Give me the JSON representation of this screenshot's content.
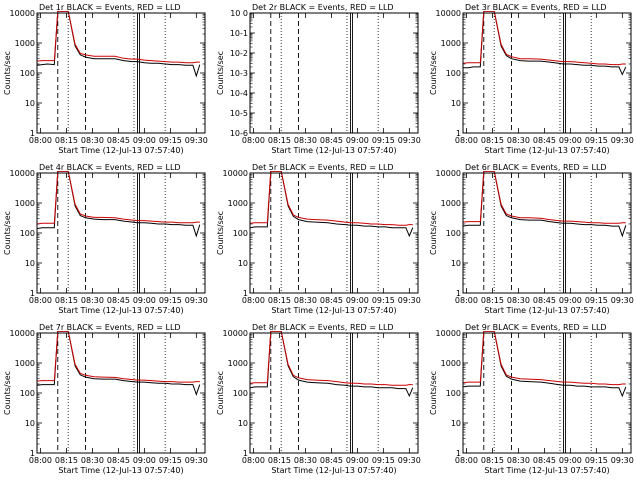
{
  "colors": {
    "events": "#000000",
    "lld": "#cc0000",
    "background": "#ffffff"
  },
  "chart_data": [
    {
      "type": "line",
      "title": "Det 1r BLACK = Events, RED = LLD",
      "xlabel": "Start Time (12-Jul-13 07:57:40)",
      "ylabel": "Counts/sec",
      "y_scale": "log",
      "ylim": [
        1,
        10000
      ],
      "x_ticks": [
        "08:00",
        "08:15",
        "08:30",
        "08:45",
        "09:00",
        "09:15",
        "09:30"
      ],
      "y_ticks": [
        "1",
        "10",
        "100",
        "1000",
        "10000"
      ],
      "x": [
        0,
        3,
        6,
        10,
        12,
        14,
        16,
        18,
        22,
        25,
        28,
        33,
        38,
        45,
        50,
        55,
        58,
        62,
        66,
        70,
        74,
        78,
        82,
        86,
        90,
        92,
        94
      ],
      "series": [
        {
          "name": "Events",
          "values": [
            180,
            190,
            200,
            190,
            12000,
            12000,
            12000,
            12000,
            800,
            400,
            340,
            300,
            300,
            300,
            260,
            240,
            240,
            220,
            210,
            210,
            200,
            190,
            190,
            180,
            180,
            80,
            190
          ]
        },
        {
          "name": "LLD",
          "values": [
            250,
            260,
            260,
            260,
            12000,
            12000,
            12000,
            12000,
            900,
            450,
            400,
            360,
            360,
            360,
            310,
            290,
            290,
            270,
            260,
            250,
            240,
            230,
            230,
            220,
            220,
            230,
            230
          ]
        }
      ],
      "markers": {
        "dashed": [
          12,
          28
        ],
        "dotted": [
          18,
          56,
          74
        ],
        "solid": [
          58
        ]
      }
    },
    {
      "type": "line",
      "title": "Det 2r BLACK = Events, RED = LLD",
      "xlabel": "Start Time (12-Jul-13 07:57:40)",
      "ylabel": "Counts/sec",
      "y_scale": "log",
      "ylim": [
        1e-06,
        1.0
      ],
      "x_ticks": [
        "08:00",
        "08:15",
        "08:30",
        "08:45",
        "09:00",
        "09:15",
        "09:30"
      ],
      "y_ticks": [
        "10-6",
        "10-5",
        "10-4",
        "10-3",
        "10-2",
        "10-1",
        "10 0"
      ],
      "x": [],
      "series": [],
      "markers": {
        "dashed": [
          12,
          28
        ],
        "dotted": [
          18,
          56,
          74
        ],
        "solid": [
          58
        ]
      }
    },
    {
      "type": "line",
      "title": "Det 3r BLACK = Events, RED = LLD",
      "xlabel": "Start Time (12-Jul-13 07:57:40)",
      "ylabel": "Counts/sec",
      "y_scale": "log",
      "ylim": [
        1,
        10000
      ],
      "x_ticks": [
        "08:00",
        "08:15",
        "08:30",
        "08:45",
        "09:00",
        "09:15",
        "09:30"
      ],
      "y_ticks": [
        "1",
        "10",
        "100",
        "1000",
        "10000"
      ],
      "x": [
        0,
        3,
        6,
        10,
        12,
        14,
        16,
        18,
        22,
        25,
        28,
        33,
        38,
        45,
        50,
        55,
        58,
        62,
        66,
        70,
        74,
        78,
        82,
        86,
        90,
        92,
        94
      ],
      "series": [
        {
          "name": "Events",
          "values": [
            150,
            150,
            160,
            160,
            12000,
            12000,
            12000,
            12000,
            800,
            380,
            300,
            260,
            250,
            250,
            230,
            210,
            200,
            200,
            190,
            180,
            180,
            170,
            170,
            160,
            160,
            90,
            160
          ]
        },
        {
          "name": "LLD",
          "values": [
            210,
            220,
            220,
            220,
            12000,
            12000,
            12000,
            12000,
            900,
            420,
            350,
            300,
            300,
            290,
            270,
            250,
            240,
            240,
            230,
            220,
            210,
            200,
            200,
            190,
            190,
            200,
            200
          ]
        }
      ],
      "markers": {
        "dashed": [
          12,
          28
        ],
        "dotted": [
          18,
          56,
          74
        ],
        "solid": [
          58
        ]
      }
    },
    {
      "type": "line",
      "title": "Det 4r BLACK = Events, RED = LLD",
      "xlabel": "Start Time (12-Jul-13 07:57:40)",
      "ylabel": "Counts/sec",
      "y_scale": "log",
      "ylim": [
        1,
        10000
      ],
      "x_ticks": [
        "08:00",
        "08:15",
        "08:30",
        "08:45",
        "09:00",
        "09:15",
        "09:30"
      ],
      "y_ticks": [
        "1",
        "10",
        "100",
        "1000",
        "10000"
      ],
      "x": [
        0,
        3,
        6,
        10,
        12,
        14,
        16,
        18,
        22,
        25,
        28,
        33,
        38,
        45,
        50,
        55,
        58,
        62,
        66,
        70,
        74,
        78,
        82,
        86,
        90,
        92,
        94
      ],
      "series": [
        {
          "name": "Events",
          "values": [
            140,
            150,
            150,
            150,
            12000,
            12000,
            12000,
            12000,
            800,
            380,
            320,
            290,
            280,
            280,
            250,
            230,
            220,
            220,
            210,
            200,
            200,
            190,
            190,
            180,
            180,
            80,
            190
          ]
        },
        {
          "name": "LLD",
          "values": [
            200,
            210,
            210,
            210,
            12000,
            12000,
            12000,
            12000,
            900,
            430,
            370,
            330,
            330,
            320,
            290,
            270,
            260,
            260,
            250,
            240,
            230,
            230,
            220,
            220,
            220,
            230,
            230
          ]
        }
      ],
      "markers": {
        "dashed": [
          12,
          28
        ],
        "dotted": [
          18,
          56,
          74
        ],
        "solid": [
          58
        ]
      }
    },
    {
      "type": "line",
      "title": "Det 5r BLACK = Events, RED = LLD",
      "xlabel": "Start Time (12-Jul-13 07:57:40)",
      "ylabel": "Counts/sec",
      "y_scale": "log",
      "ylim": [
        1,
        10000
      ],
      "x_ticks": [
        "08:00",
        "08:15",
        "08:30",
        "08:45",
        "09:00",
        "09:15",
        "09:30"
      ],
      "y_ticks": [
        "1",
        "10",
        "100",
        "1000",
        "10000"
      ],
      "x": [
        0,
        3,
        6,
        10,
        12,
        14,
        16,
        18,
        22,
        25,
        28,
        33,
        38,
        45,
        50,
        55,
        58,
        62,
        66,
        70,
        74,
        78,
        82,
        86,
        90,
        92,
        94
      ],
      "series": [
        {
          "name": "Events",
          "values": [
            150,
            160,
            160,
            160,
            12000,
            12000,
            12000,
            12000,
            800,
            360,
            280,
            240,
            230,
            220,
            200,
            190,
            180,
            180,
            170,
            170,
            160,
            160,
            150,
            150,
            150,
            80,
            150
          ]
        },
        {
          "name": "LLD",
          "values": [
            210,
            220,
            220,
            220,
            12000,
            12000,
            12000,
            12000,
            900,
            400,
            330,
            290,
            280,
            270,
            250,
            230,
            220,
            220,
            210,
            200,
            200,
            190,
            190,
            180,
            180,
            190,
            190
          ]
        }
      ],
      "markers": {
        "dashed": [
          12,
          28
        ],
        "dotted": [
          18,
          56,
          74
        ],
        "solid": [
          58
        ]
      }
    },
    {
      "type": "line",
      "title": "Det 6r BLACK = Events, RED = LLD",
      "xlabel": "Start Time (12-Jul-13 07:57:40)",
      "ylabel": "Counts/sec",
      "y_scale": "log",
      "ylim": [
        1,
        10000
      ],
      "x_ticks": [
        "08:00",
        "08:15",
        "08:30",
        "08:45",
        "09:00",
        "09:15",
        "09:30"
      ],
      "y_ticks": [
        "1",
        "10",
        "100",
        "1000",
        "10000"
      ],
      "x": [
        0,
        3,
        6,
        10,
        12,
        14,
        16,
        18,
        22,
        25,
        28,
        33,
        38,
        45,
        50,
        55,
        58,
        62,
        66,
        70,
        74,
        78,
        82,
        86,
        90,
        92,
        94
      ],
      "series": [
        {
          "name": "Events",
          "values": [
            170,
            180,
            180,
            180,
            12000,
            12000,
            12000,
            12000,
            800,
            380,
            320,
            280,
            270,
            270,
            240,
            220,
            210,
            210,
            200,
            190,
            190,
            180,
            180,
            170,
            170,
            80,
            180
          ]
        },
        {
          "name": "LLD",
          "values": [
            230,
            240,
            240,
            240,
            12000,
            12000,
            12000,
            12000,
            900,
            430,
            370,
            320,
            320,
            310,
            280,
            260,
            250,
            250,
            240,
            230,
            220,
            220,
            210,
            210,
            210,
            220,
            220
          ]
        }
      ],
      "markers": {
        "dashed": [
          12,
          28
        ],
        "dotted": [
          18,
          56,
          74
        ],
        "solid": [
          58
        ]
      }
    },
    {
      "type": "line",
      "title": "Det 7r BLACK = Events, RED = LLD",
      "xlabel": "Start Time (12-Jul-13 07:57:40)",
      "ylabel": "Counts/sec",
      "y_scale": "log",
      "ylim": [
        1,
        10000
      ],
      "x_ticks": [
        "08:00",
        "08:15",
        "08:30",
        "08:45",
        "09:00",
        "09:15",
        "09:30"
      ],
      "y_ticks": [
        "1",
        "10",
        "100",
        "1000",
        "10000"
      ],
      "x": [
        0,
        3,
        6,
        10,
        12,
        14,
        16,
        18,
        22,
        25,
        28,
        33,
        38,
        45,
        50,
        55,
        58,
        62,
        66,
        70,
        74,
        78,
        82,
        86,
        90,
        92,
        94
      ],
      "series": [
        {
          "name": "Events",
          "values": [
            180,
            190,
            190,
            190,
            12000,
            12000,
            12000,
            12000,
            800,
            400,
            340,
            300,
            290,
            290,
            260,
            240,
            230,
            230,
            220,
            210,
            210,
            200,
            200,
            190,
            190,
            90,
            190
          ]
        },
        {
          "name": "LLD",
          "values": [
            250,
            260,
            260,
            260,
            12000,
            12000,
            12000,
            12000,
            900,
            450,
            390,
            350,
            340,
            330,
            300,
            280,
            270,
            270,
            260,
            250,
            240,
            240,
            230,
            230,
            230,
            240,
            240
          ]
        }
      ],
      "markers": {
        "dashed": [
          12,
          28
        ],
        "dotted": [
          18,
          56,
          74
        ],
        "solid": [
          58
        ]
      }
    },
    {
      "type": "line",
      "title": "Det 8r BLACK = Events, RED = LLD",
      "xlabel": "Start Time (12-Jul-13 07:57:40)",
      "ylabel": "Counts/sec",
      "y_scale": "log",
      "ylim": [
        1,
        10000
      ],
      "x_ticks": [
        "08:00",
        "08:15",
        "08:30",
        "08:45",
        "09:00",
        "09:15",
        "09:30"
      ],
      "y_ticks": [
        "1",
        "10",
        "100",
        "1000",
        "10000"
      ],
      "x": [
        0,
        3,
        6,
        10,
        12,
        14,
        16,
        18,
        22,
        25,
        28,
        33,
        38,
        45,
        50,
        55,
        58,
        62,
        66,
        70,
        74,
        78,
        82,
        86,
        90,
        92,
        94
      ],
      "series": [
        {
          "name": "Events",
          "values": [
            150,
            160,
            160,
            160,
            12000,
            12000,
            12000,
            12000,
            800,
            350,
            270,
            230,
            220,
            210,
            190,
            180,
            170,
            170,
            160,
            160,
            150,
            150,
            150,
            140,
            140,
            80,
            150
          ]
        },
        {
          "name": "LLD",
          "values": [
            210,
            220,
            220,
            220,
            12000,
            12000,
            12000,
            12000,
            900,
            390,
            320,
            280,
            270,
            260,
            240,
            220,
            210,
            210,
            200,
            200,
            190,
            190,
            180,
            180,
            180,
            190,
            190
          ]
        }
      ],
      "markers": {
        "dashed": [
          12,
          28
        ],
        "dotted": [
          18,
          56,
          74
        ],
        "solid": [
          58
        ]
      }
    },
    {
      "type": "line",
      "title": "Det 9r BLACK = Events, RED = LLD",
      "xlabel": "Start Time (12-Jul-13 07:57:40)",
      "ylabel": "Counts/sec",
      "y_scale": "log",
      "ylim": [
        1,
        10000
      ],
      "x_ticks": [
        "08:00",
        "08:15",
        "08:30",
        "08:45",
        "09:00",
        "09:15",
        "09:30"
      ],
      "y_ticks": [
        "1",
        "10",
        "100",
        "1000",
        "10000"
      ],
      "x": [
        0,
        3,
        6,
        10,
        12,
        14,
        16,
        18,
        22,
        25,
        28,
        33,
        38,
        45,
        50,
        55,
        58,
        62,
        66,
        70,
        74,
        78,
        82,
        86,
        90,
        92,
        94
      ],
      "series": [
        {
          "name": "Events",
          "values": [
            160,
            170,
            170,
            170,
            12000,
            12000,
            12000,
            12000,
            800,
            360,
            290,
            250,
            240,
            230,
            210,
            190,
            180,
            180,
            170,
            170,
            160,
            160,
            160,
            150,
            150,
            80,
            160
          ]
        },
        {
          "name": "LLD",
          "values": [
            220,
            230,
            230,
            230,
            12000,
            12000,
            12000,
            12000,
            900,
            400,
            340,
            300,
            290,
            280,
            260,
            240,
            230,
            230,
            220,
            210,
            210,
            200,
            200,
            190,
            190,
            200,
            200
          ]
        }
      ],
      "markers": {
        "dashed": [
          12,
          28
        ],
        "dotted": [
          18,
          56,
          74
        ],
        "solid": [
          58
        ]
      }
    }
  ]
}
